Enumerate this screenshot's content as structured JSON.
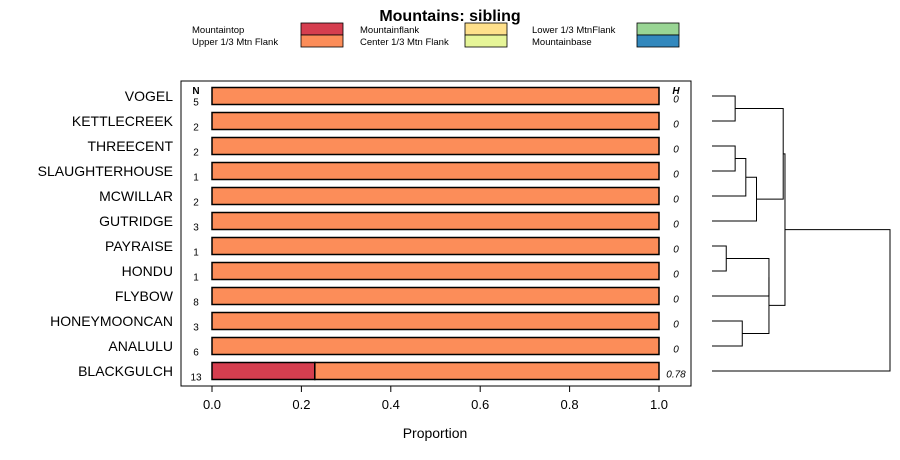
{
  "chart_data": {
    "type": "bar",
    "stacked": true,
    "orientation": "horizontal",
    "title": "Mountains: sibling",
    "xlabel": "Proportion",
    "ylabel": "",
    "xlim": [
      0,
      1
    ],
    "x_ticks": [
      "0.0",
      "0.2",
      "0.4",
      "0.6",
      "0.8",
      "1.0"
    ],
    "n_header": "N",
    "h_header": "H",
    "legend": {
      "placement": "top",
      "entries": [
        {
          "label": "Mountaintop",
          "color": "#d53e4f"
        },
        {
          "label": "Upper 1/3 Mtn Flank",
          "color": "#fc8d59"
        },
        {
          "label": "Mountainflank",
          "color": "#fee08b"
        },
        {
          "label": "Center 1/3 Mtn Flank",
          "color": "#e6f598"
        },
        {
          "label": "Lower 1/3 MtnFlank",
          "color": "#99d594"
        },
        {
          "label": "Mountainbase",
          "color": "#3288bd"
        }
      ]
    },
    "categories": [
      "VOGEL",
      "KETTLECREEK",
      "THREECENT",
      "SLAUGHTERHOUSE",
      "MCWILLAR",
      "GUTRIDGE",
      "PAYRAISE",
      "HONDU",
      "FLYBOW",
      "HONEYMOONCAN",
      "ANALULU",
      "BLACKGULCH"
    ],
    "n": [
      "5",
      "2",
      "2",
      "1",
      "2",
      "3",
      "1",
      "1",
      "8",
      "3",
      "6",
      "13"
    ],
    "h": [
      "0",
      "0",
      "0",
      "0",
      "0",
      "0",
      "0",
      "0",
      "0",
      "0",
      "0",
      "0.78"
    ],
    "series": [
      {
        "name": "Mountaintop",
        "values": [
          0,
          0,
          0,
          0,
          0,
          0,
          0,
          0,
          0,
          0,
          0,
          0.23
        ]
      },
      {
        "name": "Upper 1/3 Mtn Flank",
        "values": [
          1,
          1,
          1,
          1,
          1,
          1,
          1,
          1,
          1,
          1,
          1,
          0.77
        ]
      },
      {
        "name": "Mountainflank",
        "values": [
          0,
          0,
          0,
          0,
          0,
          0,
          0,
          0,
          0,
          0,
          0,
          0
        ]
      },
      {
        "name": "Center 1/3 Mtn Flank",
        "values": [
          0,
          0,
          0,
          0,
          0,
          0,
          0,
          0,
          0,
          0,
          0,
          0
        ]
      },
      {
        "name": "Lower 1/3 MtnFlank",
        "values": [
          0,
          0,
          0,
          0,
          0,
          0,
          0,
          0,
          0,
          0,
          0,
          0
        ]
      },
      {
        "name": "Mountainbase",
        "values": [
          0,
          0,
          0,
          0,
          0,
          0,
          0,
          0,
          0,
          0,
          0,
          0
        ]
      }
    ],
    "dendrogram": {
      "leaves": [
        "VOGEL",
        "KETTLECREEK",
        "THREECENT",
        "SLAUGHTERHOUSE",
        "MCWILLAR",
        "GUTRIDGE",
        "PAYRAISE",
        "HONDU",
        "FLYBOW",
        "HONEYMOONCAN",
        "ANALULU",
        "BLACKGULCH"
      ],
      "merges": [
        {
          "a": 0,
          "b": 1,
          "height": 0.13
        },
        {
          "a": 2,
          "b": 3,
          "height": 0.13
        },
        {
          "a": "m1",
          "b": 4,
          "height": 0.19
        },
        {
          "a": "m2",
          "b": 5,
          "height": 0.25
        },
        {
          "a": "m0",
          "b": "m3",
          "height": 0.4
        },
        {
          "a": 6,
          "b": 7,
          "height": 0.08
        },
        {
          "a": 9,
          "b": 10,
          "height": 0.17
        },
        {
          "a": "m5",
          "b": 8,
          "height": 0.32
        },
        {
          "a": "m7",
          "b": "m6",
          "height": 0.32
        },
        {
          "a": "m4",
          "b": "m8",
          "height": 0.41
        },
        {
          "a": "m9",
          "b": 11,
          "height": 1.0
        }
      ]
    }
  }
}
